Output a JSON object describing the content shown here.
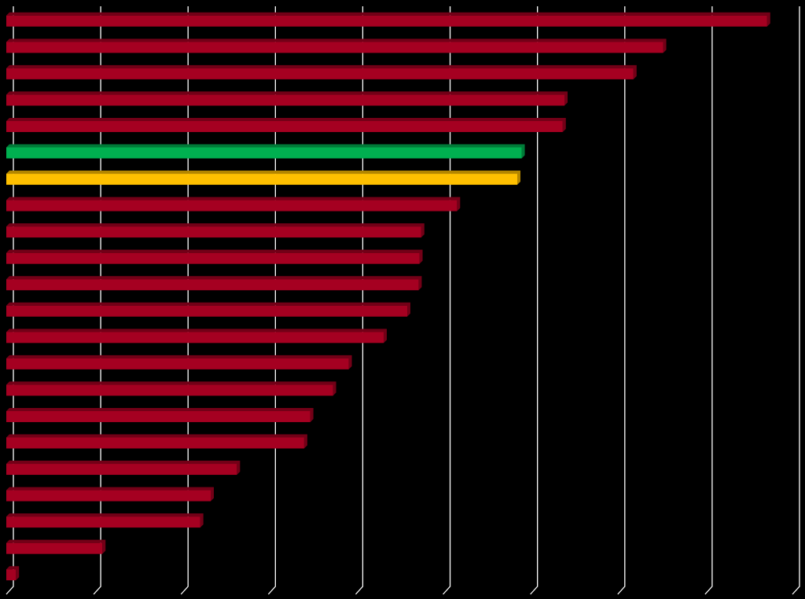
{
  "chart_data": {
    "type": "bar",
    "orientation": "horizontal",
    "values": [
      8.71,
      7.52,
      7.18,
      6.39,
      6.37,
      5.9,
      5.85,
      5.16,
      4.75,
      4.73,
      4.72,
      4.59,
      4.32,
      3.92,
      3.74,
      3.48,
      3.41,
      2.64,
      2.34,
      2.22,
      1.1,
      0.11
    ],
    "colors": [
      "#a50021",
      "#a50021",
      "#a50021",
      "#a50021",
      "#a50021",
      "#00b050",
      "#ffc000",
      "#a50021",
      "#a50021",
      "#a50021",
      "#a50021",
      "#a50021",
      "#a50021",
      "#a50021",
      "#a50021",
      "#a50021",
      "#a50021",
      "#a50021",
      "#a50021",
      "#a50021",
      "#a50021",
      "#a50021"
    ],
    "xlim": [
      0,
      9
    ],
    "xticks": [
      0,
      1,
      2,
      3,
      4,
      5,
      6,
      7,
      8,
      9
    ],
    "grid": true,
    "grid_color": "#ffffff",
    "background": "#000000"
  }
}
